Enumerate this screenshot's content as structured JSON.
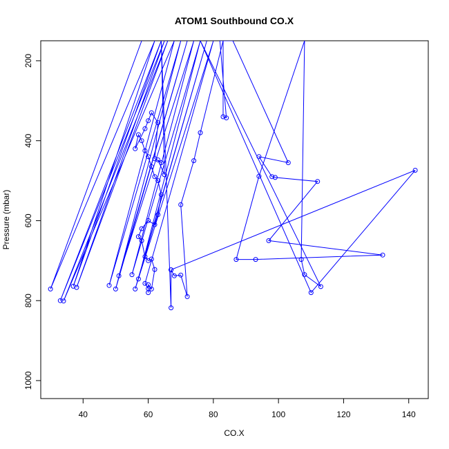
{
  "chart_data": {
    "type": "scatter",
    "title": "ATOM1 Southbound CO.X",
    "xlabel": "CO.X",
    "ylabel": "Pressure (mbar)",
    "xlim": [
      27,
      146
    ],
    "ylim": [
      1045,
      150
    ],
    "y_axis_reversed": true,
    "x_ticks": [
      40,
      60,
      80,
      100,
      120,
      140
    ],
    "y_ticks": [
      200,
      400,
      600,
      800,
      1000
    ],
    "grid": false,
    "legend": "none",
    "marker": "open-circle",
    "connect_points": true,
    "series": [
      {
        "color": "#0000ff",
        "points": [
          [
            58,
            150
          ],
          [
            30,
            771
          ],
          [
            62,
            150
          ],
          [
            37,
            764
          ],
          [
            64,
            150
          ],
          [
            33,
            800
          ],
          [
            65,
            150
          ],
          [
            38,
            767
          ],
          [
            66,
            150
          ],
          [
            34,
            801
          ],
          [
            68,
            150
          ],
          [
            48,
            762
          ],
          [
            70,
            150
          ],
          [
            50,
            771
          ],
          [
            72,
            150
          ],
          [
            51,
            738
          ],
          [
            74,
            150
          ],
          [
            55,
            735
          ],
          [
            76,
            150
          ],
          [
            57,
            746
          ],
          [
            78,
            150
          ],
          [
            56,
            771
          ],
          [
            80,
            150
          ],
          [
            59,
            757
          ],
          [
            60,
            770
          ],
          [
            60,
            780
          ],
          [
            60,
            760
          ],
          [
            61,
            771
          ],
          [
            62,
            722
          ],
          [
            61,
            696
          ],
          [
            60,
            700
          ],
          [
            59,
            690
          ],
          [
            58,
            650
          ],
          [
            57,
            640
          ],
          [
            58,
            620
          ],
          [
            60,
            600
          ],
          [
            62,
            610
          ],
          [
            63,
            585
          ],
          [
            64,
            535
          ],
          [
            63,
            500
          ],
          [
            62,
            490
          ],
          [
            61,
            465
          ],
          [
            60,
            440
          ],
          [
            59,
            425
          ],
          [
            58,
            400
          ],
          [
            57,
            385
          ],
          [
            56,
            420
          ],
          [
            59,
            370
          ],
          [
            60,
            350
          ],
          [
            61,
            330
          ],
          [
            63,
            355
          ],
          [
            62,
            445
          ],
          [
            64,
            455
          ],
          [
            63,
            448
          ],
          [
            65,
            485
          ],
          [
            64,
            150
          ],
          [
            67,
            818
          ],
          [
            67,
            723
          ],
          [
            68,
            738
          ],
          [
            70,
            736
          ],
          [
            72,
            790
          ],
          [
            70,
            560
          ],
          [
            74,
            450
          ],
          [
            76,
            380
          ],
          [
            83,
            150
          ],
          [
            83,
            340
          ],
          [
            84,
            343
          ],
          [
            82,
            150
          ],
          [
            86,
            150
          ],
          [
            103,
            455
          ],
          [
            94,
            440
          ],
          [
            98,
            490
          ],
          [
            99,
            492
          ],
          [
            112,
            502
          ],
          [
            97,
            650
          ],
          [
            132,
            686
          ],
          [
            93,
            697
          ],
          [
            87,
            697
          ],
          [
            94,
            489
          ],
          [
            108,
            150
          ],
          [
            107,
            697
          ],
          [
            108,
            735
          ],
          [
            113,
            765
          ],
          [
            76,
            150
          ],
          [
            110,
            780
          ],
          [
            142,
            474
          ],
          [
            67,
            723
          ]
        ]
      }
    ]
  }
}
